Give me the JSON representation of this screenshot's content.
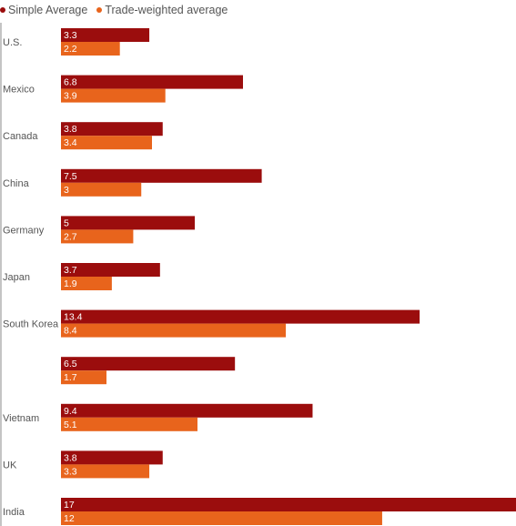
{
  "legend": {
    "simple_label": "Simple Average",
    "weighted_label": "Trade-weighted average"
  },
  "colors": {
    "simple": "#9B0D0D",
    "weighted": "#E8641C",
    "axis": "#888888",
    "category_text": "#555555",
    "value_text": "#ffffff"
  },
  "chart_data": {
    "type": "bar",
    "orientation": "horizontal",
    "categories": [
      "U.S.",
      "Mexico",
      "Canada",
      "China",
      "Germany",
      "Japan",
      "South Korea",
      "",
      "Vietnam",
      "UK",
      "India"
    ],
    "series": [
      {
        "name": "Simple Average",
        "values": [
          3.3,
          6.8,
          3.8,
          7.5,
          5,
          3.7,
          13.4,
          6.5,
          9.4,
          3.8,
          17
        ]
      },
      {
        "name": "Trade-weighted average",
        "values": [
          2.2,
          3.9,
          3.4,
          3,
          2.7,
          1.9,
          8.4,
          1.7,
          5.1,
          3.3,
          12
        ]
      }
    ],
    "value_labels": [
      [
        "3.3",
        "6.8",
        "3.8",
        "7.5",
        "5",
        "3.7",
        "13.4",
        "6.5",
        "9.4",
        "3.8",
        "17"
      ],
      [
        "2.2",
        "3.9",
        "3.4",
        "3",
        "2.7",
        "1.9",
        "8.4",
        "1.7",
        "5.1",
        "3.3",
        "12"
      ]
    ],
    "xlim": [
      0,
      17
    ],
    "grid": false,
    "legend_position": "top-left"
  }
}
